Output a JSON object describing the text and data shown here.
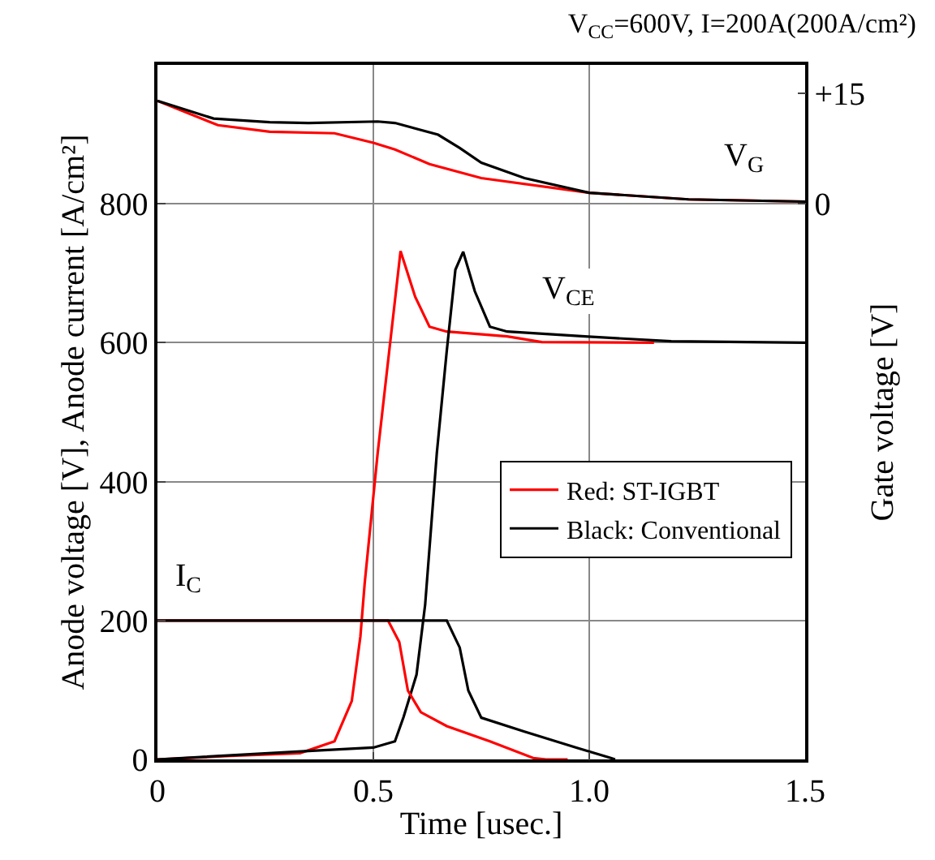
{
  "chart_data": {
    "type": "line",
    "title": "V$_{CC}$=600V, I=200A(200A/cm²)",
    "xlabel": "Time [usec.]",
    "ylabel": "Anode voltage [V], Anode current [A/cm²]",
    "y2label": "Gate voltage [V]",
    "xlim": [
      0,
      1.5
    ],
    "xticks": [
      0,
      0.5,
      {
        "value": 1.0,
        "label": "1.0"
      },
      1.5
    ],
    "ylim": [
      0,
      1000
    ],
    "yticks": [
      0,
      200,
      400,
      600,
      800
    ],
    "y2lim": [
      -75.6,
      18.9
    ],
    "y2ticks": [
      0,
      {
        "value": 15,
        "label": "+15"
      }
    ],
    "grid": true,
    "legend": "right",
    "line_style": "solid",
    "series": [
      {
        "color": "#ff0000",
        "axis": "y2",
        "x": [
          0,
          0.14,
          0.26,
          0.41,
          0.5,
          0.55,
          0.63,
          0.75,
          1.0,
          1.23,
          1.5
        ],
        "values": [
          14.0,
          10.7,
          9.8,
          9.6,
          8.3,
          7.4,
          5.4,
          3.5,
          1.5,
          0.6,
          0.3
        ]
      },
      {
        "color": "#000000",
        "axis": "y2",
        "x": [
          0,
          0.13,
          0.26,
          0.35,
          0.51,
          0.55,
          0.65,
          0.7,
          0.75,
          0.85,
          1.0,
          1.23,
          1.5
        ],
        "values": [
          14.0,
          11.6,
          11.1,
          11.0,
          11.2,
          11.0,
          9.4,
          7.6,
          5.6,
          3.5,
          1.5,
          0.6,
          0.3
        ]
      },
      {
        "name": "Red: ST-IGBT",
        "color": "#ff0000",
        "x": [
          0,
          0.17,
          0.33,
          0.41,
          0.45,
          0.47,
          0.48,
          0.51,
          0.563,
          0.597,
          0.63,
          0.67,
          0.81,
          0.89,
          1.15
        ],
        "values": [
          0,
          5,
          9,
          26,
          84,
          177,
          254,
          441,
          732,
          666,
          623,
          616,
          609,
          601,
          600
        ]
      },
      {
        "name": "Black: Conventional",
        "color": "#000000",
        "x": [
          0,
          0.35,
          0.5,
          0.55,
          0.57,
          0.6,
          0.62,
          0.647,
          0.67,
          0.69,
          0.708,
          0.735,
          0.77,
          0.81,
          0.99,
          1.19,
          1.5
        ],
        "values": [
          0,
          12,
          17,
          26,
          61,
          122,
          223,
          441,
          588,
          705,
          731,
          674,
          623,
          616,
          609,
          602,
          600
        ]
      },
      {
        "color": "#ff0000",
        "x": [
          0,
          0.534,
          0.56,
          0.58,
          0.61,
          0.67,
          0.77,
          0.87,
          0.9,
          0.95
        ],
        "values": [
          200,
          200,
          169,
          99,
          68,
          48,
          26,
          2,
          0,
          0
        ]
      },
      {
        "color": "#000000",
        "x": [
          0,
          0.67,
          0.7,
          0.72,
          0.75,
          0.85,
          0.97,
          1.05,
          1.06
        ],
        "values": [
          200,
          200,
          161,
          99,
          60,
          40,
          17,
          2,
          0
        ]
      }
    ],
    "annotations": [
      {
        "text": "V$_{G}$",
        "x": 1.36,
        "y": 865
      },
      {
        "text": "V$_{CE}$",
        "x": 0.95,
        "y": 674
      },
      {
        "text": "I$_{C}$",
        "x": 0.07,
        "y": 261
      }
    ]
  }
}
